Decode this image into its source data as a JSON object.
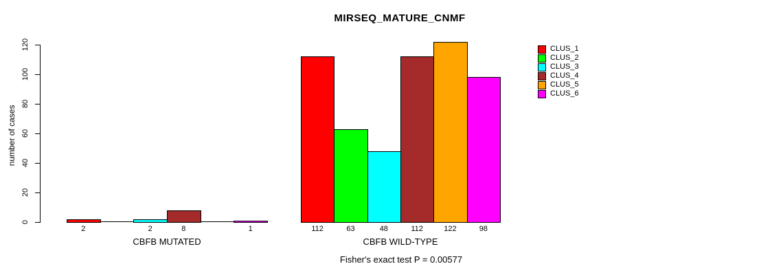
{
  "title": "MIRSEQ_MATURE_CNMF",
  "footer": "Fisher's exact test P = 0.00577",
  "chart_data": {
    "type": "bar",
    "title": "MIRSEQ_MATURE_CNMF",
    "xlabel": "",
    "ylabel": "number of cases",
    "ylim": [
      0,
      120
    ],
    "yticks": [
      0,
      20,
      40,
      60,
      80,
      100,
      120
    ],
    "grid": false,
    "legend_position": "top-right",
    "categories": [
      "CBFB MUTATED",
      "CBFB WILD-TYPE"
    ],
    "series": [
      {
        "name": "CLUS_1",
        "color": "#FF0000",
        "values": [
          2,
          112
        ]
      },
      {
        "name": "CLUS_2",
        "color": "#00FF00",
        "values": [
          0,
          63
        ]
      },
      {
        "name": "CLUS_3",
        "color": "#00FFFF",
        "values": [
          2,
          48
        ]
      },
      {
        "name": "CLUS_4",
        "color": "#A52A2A",
        "values": [
          8,
          112
        ]
      },
      {
        "name": "CLUS_5",
        "color": "#FFA500",
        "values": [
          0,
          122
        ]
      },
      {
        "name": "CLUS_6",
        "color": "#FF00FF",
        "values": [
          1,
          98
        ]
      }
    ],
    "bar_value_labels": true,
    "zero_values_unlabeled": true,
    "annotation": "Fisher's exact test P = 0.00577"
  }
}
